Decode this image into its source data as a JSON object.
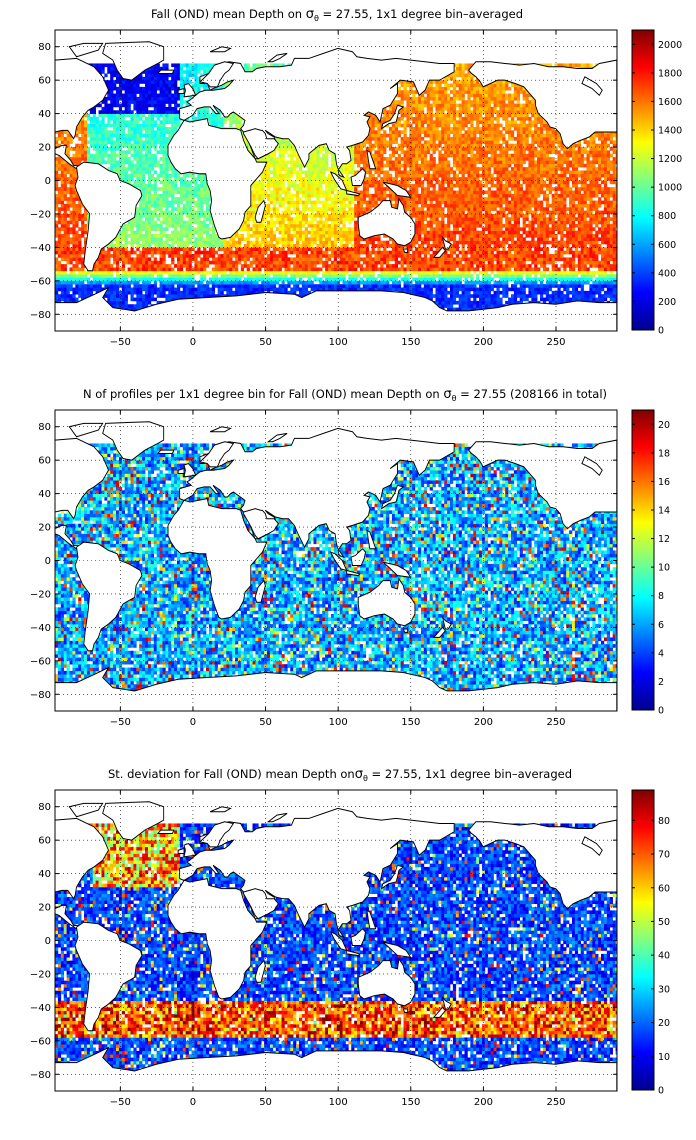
{
  "figure": {
    "colors": {
      "land": "#ffffff",
      "coast": "#000000",
      "background": "#ffffff",
      "grid": "#000000"
    },
    "colormap": "jet"
  },
  "chart_data": [
    {
      "type": "heatmap",
      "title_prefix": "Fall (OND) mean Depth on ",
      "title_symbol": "σ",
      "title_subscript": "θ",
      "title_suffix": " = 27.55, 1x1 degree bin–averaged",
      "xlabel": "",
      "ylabel": "",
      "xlim": [
        -95,
        292
      ],
      "ylim": [
        -90,
        90
      ],
      "xticks": [
        -50,
        0,
        50,
        100,
        150,
        200,
        250
      ],
      "yticks": [
        -80,
        -60,
        -40,
        -20,
        0,
        20,
        40,
        60,
        80
      ],
      "grid": true,
      "colorbar": {
        "min": 0,
        "max": 2100,
        "ticks": [
          0,
          200,
          400,
          600,
          800,
          1000,
          1200,
          1400,
          1600,
          1800,
          2000
        ]
      },
      "field": "depth"
    },
    {
      "type": "heatmap",
      "title_prefix": "N of profiles per 1x1 degree bin for Fall (OND) mean Depth on ",
      "title_symbol": "σ",
      "title_subscript": "θ",
      "title_suffix": " = 27.55 (208166 in total)",
      "xlabel": "",
      "ylabel": "",
      "total_profiles": 208166,
      "xlim": [
        -95,
        292
      ],
      "ylim": [
        -90,
        90
      ],
      "xticks": [
        -50,
        0,
        50,
        100,
        150,
        200,
        250
      ],
      "yticks": [
        -80,
        -60,
        -40,
        -20,
        0,
        20,
        40,
        60,
        80
      ],
      "grid": true,
      "colorbar": {
        "min": 0,
        "max": 21,
        "ticks": [
          0,
          2,
          4,
          6,
          8,
          10,
          12,
          14,
          16,
          18,
          20
        ]
      },
      "field": "count"
    },
    {
      "type": "heatmap",
      "title_prefix": "St. deviation for Fall (OND) mean Depth on",
      "title_symbol": "σ",
      "title_subscript": "θ",
      "title_suffix": " = 27.55, 1x1 degree bin–averaged",
      "xlabel": "",
      "ylabel": "",
      "xlim": [
        -95,
        292
      ],
      "ylim": [
        -90,
        90
      ],
      "xticks": [
        -50,
        0,
        50,
        100,
        150,
        200,
        250
      ],
      "yticks": [
        -80,
        -60,
        -40,
        -20,
        0,
        20,
        40,
        60,
        80
      ],
      "grid": true,
      "colorbar": {
        "min": 0,
        "max": 89,
        "ticks": [
          0,
          10,
          20,
          30,
          40,
          50,
          60,
          70,
          80
        ]
      },
      "field": "std"
    }
  ]
}
